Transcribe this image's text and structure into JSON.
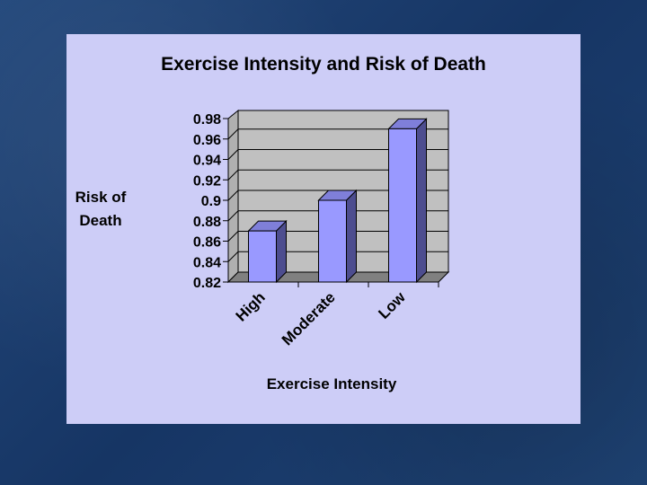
{
  "slide": {
    "background": "#1d3f6e",
    "panel_color": "#cdcdf7"
  },
  "chart_data": {
    "type": "bar",
    "title": "Exercise Intensity and Risk of Death",
    "categories": [
      "High",
      "Moderate",
      "Low"
    ],
    "values": [
      0.87,
      0.9,
      0.97
    ],
    "xlabel": "Exercise Intensity",
    "ylabel": "Risk of Death",
    "ylabel_lines": [
      "Risk of",
      "Death"
    ],
    "ylim": [
      0.82,
      0.98
    ],
    "yticks": [
      "0.98",
      "0.96",
      "0.94",
      "0.92",
      "0.9",
      "0.88",
      "0.86",
      "0.84",
      "0.82"
    ],
    "grid": true,
    "style": "3d-column",
    "colors": {
      "bar_front": "#9999ff",
      "bar_side": "#4d4d8f",
      "bar_top": "#7f7fd9",
      "plot_wall": "#c0c0c0",
      "plot_floor": "#808080",
      "gridline": "#000000"
    }
  }
}
